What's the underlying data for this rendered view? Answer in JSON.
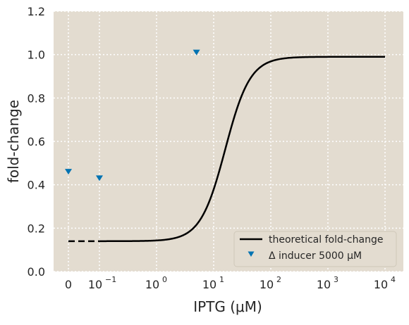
{
  "chart_data": {
    "type": "scatter",
    "xlabel": "IPTG (μM)",
    "ylabel": "fold-change",
    "x_scale": "symlog",
    "x_ticks": [
      {
        "value": 0,
        "base": "0",
        "exp": ""
      },
      {
        "value": 0.1,
        "base": "10",
        "exp": "−1"
      },
      {
        "value": 1,
        "base": "10",
        "exp": "0"
      },
      {
        "value": 10,
        "base": "10",
        "exp": "1"
      },
      {
        "value": 100,
        "base": "10",
        "exp": "2"
      },
      {
        "value": 1000,
        "base": "10",
        "exp": "3"
      },
      {
        "value": 10000,
        "base": "10",
        "exp": "4"
      }
    ],
    "ylim": [
      0.0,
      1.2
    ],
    "y_ticks": [
      "0.0",
      "0.2",
      "0.4",
      "0.6",
      "0.8",
      "1.0",
      "1.2"
    ],
    "grid": true,
    "legend_position": "lower-right",
    "background_color": "#e3dcd0",
    "series": [
      {
        "name": "theoretical fold-change",
        "kind": "line",
        "color": "#000000",
        "leakiness": 0.14,
        "max_fold_change": 0.99,
        "ec50_uM": 16,
        "hill_n": 2,
        "x_range": [
          0.1,
          10000
        ],
        "dashed_segment": [
          0,
          0.1
        ]
      },
      {
        "name": "Δ inducer 5000 μM",
        "kind": "scatter",
        "marker": "triangle-down",
        "color": "#0173b2",
        "points": [
          {
            "x": 0,
            "y": 0.46
          },
          {
            "x": 0.1,
            "y": 0.43
          },
          {
            "x": 5,
            "y": 1.01
          }
        ]
      }
    ]
  }
}
